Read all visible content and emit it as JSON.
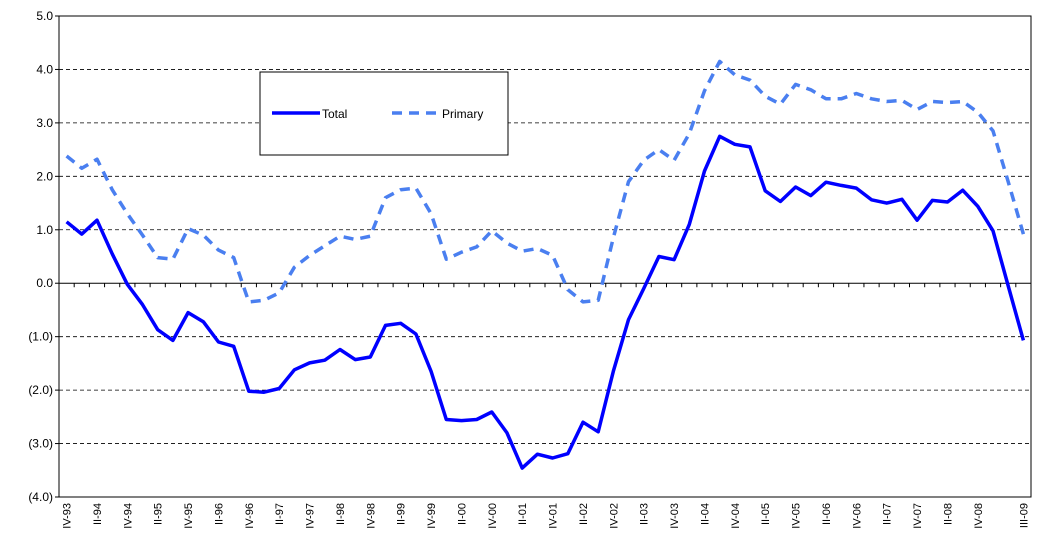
{
  "chart_data": {
    "type": "line",
    "categories": [
      "IV-93",
      null,
      "II-94",
      null,
      "IV-94",
      null,
      "II-95",
      null,
      "IV-95",
      null,
      "II-96",
      null,
      "IV-96",
      null,
      "II-97",
      null,
      "IV-97",
      null,
      "II-98",
      null,
      "IV-98",
      null,
      "II-99",
      null,
      "IV-99",
      null,
      "II-00",
      null,
      "IV-00",
      null,
      "II-01",
      null,
      "IV-01",
      null,
      "II-02",
      null,
      "IV-02",
      null,
      "II-03",
      null,
      "IV-03",
      null,
      "II-04",
      null,
      "IV-04",
      null,
      "II-05",
      null,
      "IV-05",
      null,
      "II-06",
      null,
      "IV-06",
      null,
      "II-07",
      null,
      "IV-07",
      null,
      "II-08",
      null,
      "IV-08",
      null,
      null,
      "III-09"
    ],
    "series": [
      {
        "name": "Total",
        "color": "#0000ff",
        "dashed": false,
        "values": [
          1.15,
          0.92,
          1.18,
          0.55,
          -0.02,
          -0.4,
          -0.87,
          -1.07,
          -0.55,
          -0.72,
          -1.1,
          -1.18,
          -2.02,
          -2.04,
          -1.97,
          -1.62,
          -1.49,
          -1.44,
          -1.24,
          -1.43,
          -1.38,
          -0.79,
          -0.75,
          -0.95,
          -1.65,
          -2.55,
          -2.57,
          -2.55,
          -2.41,
          -2.8,
          -3.46,
          -3.2,
          -3.27,
          -3.19,
          -2.6,
          -2.78,
          -1.65,
          -0.68,
          -0.1,
          0.5,
          0.44,
          1.1,
          2.1,
          2.75,
          2.6,
          2.55,
          1.73,
          1.53,
          1.8,
          1.64,
          1.89,
          1.83,
          1.78,
          1.56,
          1.5,
          1.57,
          1.18,
          1.55,
          1.52,
          1.74,
          1.44,
          0.98,
          -0.05,
          -1.07
        ]
      },
      {
        "name": "Primary",
        "color": "#4a7ff0",
        "dashed": true,
        "values": [
          2.38,
          2.15,
          2.32,
          1.75,
          1.3,
          0.9,
          0.48,
          0.45,
          1.02,
          0.9,
          0.62,
          0.48,
          -0.35,
          -0.32,
          -0.18,
          0.3,
          0.52,
          0.7,
          0.88,
          0.82,
          0.88,
          1.6,
          1.75,
          1.78,
          1.3,
          0.45,
          0.58,
          0.68,
          0.98,
          0.75,
          0.6,
          0.65,
          0.52,
          -0.12,
          -0.35,
          -0.32,
          0.85,
          1.9,
          2.3,
          2.5,
          2.3,
          2.8,
          3.6,
          4.15,
          3.9,
          3.8,
          3.5,
          3.35,
          3.72,
          3.62,
          3.45,
          3.45,
          3.55,
          3.45,
          3.4,
          3.42,
          3.25,
          3.4,
          3.38,
          3.4,
          3.2,
          2.85,
          1.9,
          0.92
        ]
      }
    ],
    "ylim": [
      -4,
      5
    ],
    "yticks": [
      {
        "value": -4,
        "label": "(4.0)"
      },
      {
        "value": -3,
        "label": "(3.0)"
      },
      {
        "value": -2,
        "label": "(2.0)"
      },
      {
        "value": -1,
        "label": "(1.0)"
      },
      {
        "value": 0,
        "label": "0.0"
      },
      {
        "value": 1,
        "label": "1.0"
      },
      {
        "value": 2,
        "label": "2.0"
      },
      {
        "value": 3,
        "label": "3.0"
      },
      {
        "value": 4,
        "label": "4.0"
      },
      {
        "value": 5,
        "label": "5.0"
      }
    ],
    "grid": true
  }
}
